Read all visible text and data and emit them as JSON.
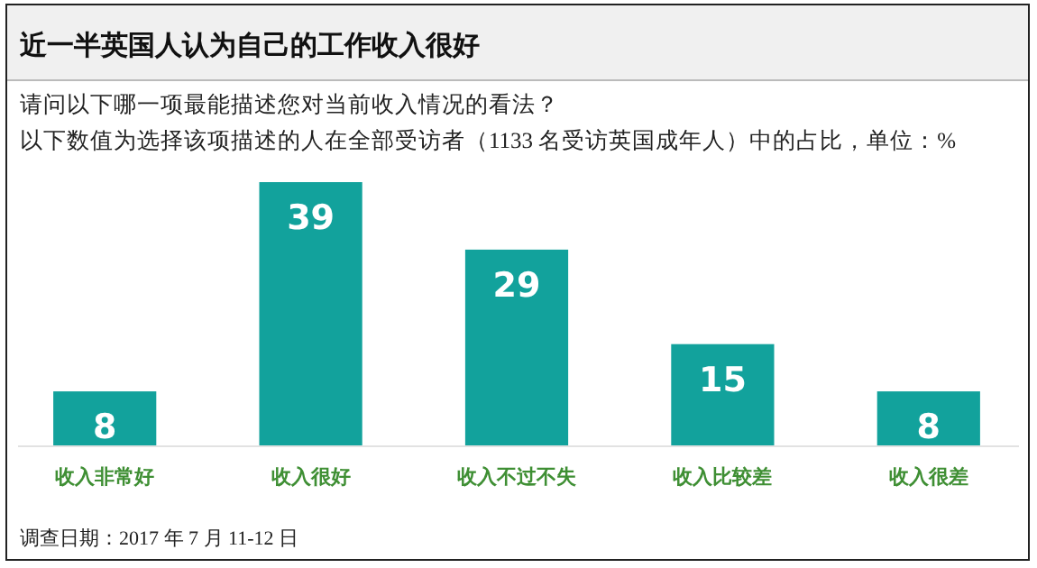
{
  "chart_data": {
    "type": "bar",
    "title": "近一半英国人认为自己的工作收入很好",
    "subtitle": "请问以下哪一项最能描述您对当前收入情况的看法？",
    "categories": [
      "收入非常好",
      "收入很好",
      "收入不过不失",
      "收入比较差",
      "收入很差"
    ],
    "values": [
      8,
      39,
      29,
      15,
      8
    ],
    "color": "#12a29c",
    "data_labels": true,
    "annotations": [
      "以下数值为选择该项描述的人在全部受访者（1133 名受访英国成年人）中的占比，单位：%",
      "调查日期：2017 年 7 月 11-12 日"
    ]
  }
}
